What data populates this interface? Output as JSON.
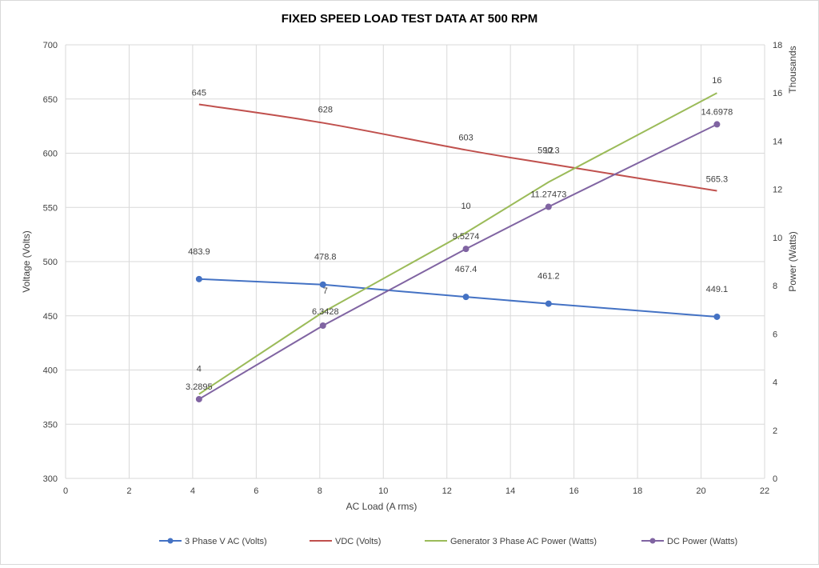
{
  "chart_data": {
    "type": "line",
    "title": "FIXED SPEED LOAD TEST DATA AT 500 RPM",
    "xlabel": "AC Load (A rms)",
    "ylabel": "Voltage (Volts)",
    "y2label": "Power (Watts)",
    "y2_unit_label": "Thousands",
    "xlim": [
      0,
      22
    ],
    "ylim": [
      300,
      700
    ],
    "y2lim": [
      0,
      18
    ],
    "x_ticks": [
      0,
      2,
      4,
      6,
      8,
      10,
      12,
      14,
      16,
      18,
      20,
      22
    ],
    "y_ticks": [
      300,
      350,
      400,
      450,
      500,
      550,
      600,
      650,
      700
    ],
    "y2_ticks": [
      0,
      2,
      4,
      6,
      8,
      10,
      12,
      14,
      16,
      18
    ],
    "grid": true,
    "legend_position": "bottom",
    "series": [
      {
        "name": "3 Phase V AC  (Volts)",
        "axis": "left",
        "color": "#4472c4",
        "markers": true,
        "x": [
          4.2,
          8.1,
          12.6,
          15.2,
          20.5
        ],
        "y": [
          483.9,
          478.8,
          467.4,
          461.2,
          449.1
        ],
        "labels": [
          "483.9",
          "478.8",
          "467.4",
          "461.2",
          "449.1"
        ]
      },
      {
        "name": "VDC (Volts)",
        "axis": "left",
        "color": "#c0504d",
        "markers": false,
        "x": [
          4.2,
          8.1,
          12.6,
          15.2,
          20.5
        ],
        "y": [
          645,
          628,
          603,
          590.3,
          565.3
        ],
        "labels": [
          "645",
          "628",
          "603",
          "590.3",
          "565.3"
        ]
      },
      {
        "name": "Generator 3 Phase AC Power (Watts)",
        "axis": "right",
        "color": "#9bbb59",
        "markers": false,
        "x": [
          4.2,
          8.1,
          12.6,
          15.2,
          20.5
        ],
        "y": [
          3.5,
          6.9,
          10.2,
          12.3,
          16
        ],
        "labels": [
          "4",
          "7",
          "10",
          "12",
          "16"
        ]
      },
      {
        "name": "DC Power (Watts)",
        "axis": "right",
        "color": "#8064a2",
        "markers": true,
        "x": [
          4.2,
          8.1,
          12.6,
          15.2,
          20.5
        ],
        "y": [
          3.2895,
          6.3428,
          9.5274,
          11.27473,
          14.6978
        ],
        "labels": [
          "3.2895",
          "6.3428",
          "9.5274",
          "11.27473",
          "14.6978"
        ]
      }
    ]
  }
}
